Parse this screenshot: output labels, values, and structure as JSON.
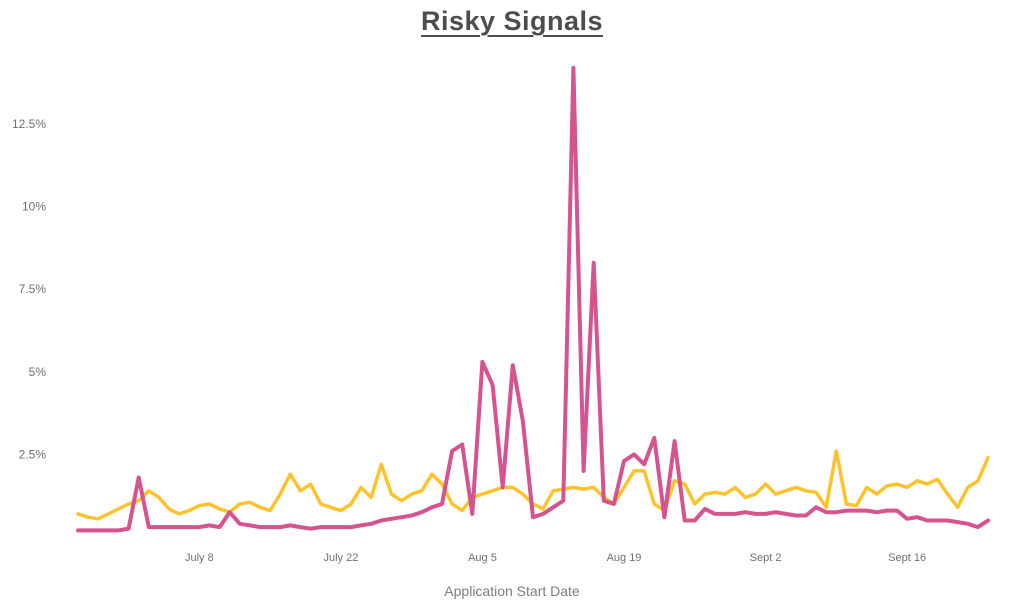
{
  "title": "Risky Signals",
  "x_axis_title": "Application Start Date",
  "colors": {
    "title_text": "#4d4d4d",
    "axis_text": "#6f6f6f",
    "background": "#ffffff",
    "series_pink": "#d5538f",
    "series_yellow": "#fdc32f"
  },
  "chart_data": {
    "type": "line",
    "title": "Risky Signals",
    "xlabel": "Application Start Date",
    "ylabel": "",
    "grid": false,
    "legend": "none",
    "ylim": [
      0,
      14.5
    ],
    "y_ticks": [
      {
        "value": 2.5,
        "label": "2.5%"
      },
      {
        "value": 5,
        "label": "5%"
      },
      {
        "value": 7.5,
        "label": "7.5%"
      },
      {
        "value": 10,
        "label": "10%"
      },
      {
        "value": 12.5,
        "label": "12.5%"
      }
    ],
    "x_ticks": [
      {
        "index": 12,
        "label": "July 8"
      },
      {
        "index": 26,
        "label": "July 22"
      },
      {
        "index": 40,
        "label": "Aug 5"
      },
      {
        "index": 54,
        "label": "Aug 19"
      },
      {
        "index": 68,
        "label": "Sept 2"
      },
      {
        "index": 82,
        "label": "Sept 16"
      }
    ],
    "series": [
      {
        "name": "yellow-signal",
        "color": "#fdc32f",
        "stroke_width": 3.5,
        "values": [
          0.7,
          0.6,
          0.55,
          0.7,
          0.85,
          1.0,
          1.1,
          1.4,
          1.2,
          0.85,
          0.7,
          0.8,
          0.95,
          1.0,
          0.85,
          0.75,
          1.0,
          1.05,
          0.9,
          0.8,
          1.3,
          1.9,
          1.4,
          1.6,
          1.0,
          0.9,
          0.8,
          1.0,
          1.5,
          1.2,
          2.2,
          1.3,
          1.1,
          1.3,
          1.4,
          1.9,
          1.6,
          1.0,
          0.8,
          1.2,
          1.3,
          1.4,
          1.5,
          1.5,
          1.3,
          1.0,
          0.85,
          1.4,
          1.45,
          1.5,
          1.45,
          1.5,
          1.2,
          1.0,
          1.5,
          2.0,
          2.0,
          1.0,
          0.8,
          1.7,
          1.6,
          1.0,
          1.3,
          1.35,
          1.3,
          1.5,
          1.2,
          1.3,
          1.6,
          1.3,
          1.4,
          1.5,
          1.4,
          1.35,
          0.9,
          2.6,
          1.0,
          0.95,
          1.5,
          1.3,
          1.55,
          1.6,
          1.5,
          1.7,
          1.6,
          1.75,
          1.3,
          0.9,
          1.5,
          1.7,
          2.4
        ]
      },
      {
        "name": "pink-signal",
        "color": "#d5538f",
        "stroke_width": 4,
        "values": [
          0.2,
          0.2,
          0.2,
          0.2,
          0.2,
          0.25,
          1.8,
          0.3,
          0.3,
          0.3,
          0.3,
          0.3,
          0.3,
          0.35,
          0.3,
          0.75,
          0.4,
          0.35,
          0.3,
          0.3,
          0.3,
          0.35,
          0.3,
          0.25,
          0.3,
          0.3,
          0.3,
          0.3,
          0.35,
          0.4,
          0.5,
          0.55,
          0.6,
          0.65,
          0.75,
          0.9,
          1.0,
          2.6,
          2.8,
          0.7,
          5.3,
          4.6,
          1.5,
          5.2,
          3.5,
          0.6,
          0.7,
          0.9,
          1.1,
          14.2,
          2.0,
          8.3,
          1.1,
          1.0,
          2.3,
          2.5,
          2.2,
          3.0,
          0.6,
          2.9,
          0.5,
          0.5,
          0.85,
          0.7,
          0.7,
          0.7,
          0.75,
          0.7,
          0.7,
          0.75,
          0.7,
          0.65,
          0.65,
          0.9,
          0.75,
          0.75,
          0.8,
          0.8,
          0.8,
          0.75,
          0.8,
          0.8,
          0.55,
          0.6,
          0.5,
          0.5,
          0.5,
          0.45,
          0.4,
          0.3,
          0.5
        ]
      }
    ]
  }
}
